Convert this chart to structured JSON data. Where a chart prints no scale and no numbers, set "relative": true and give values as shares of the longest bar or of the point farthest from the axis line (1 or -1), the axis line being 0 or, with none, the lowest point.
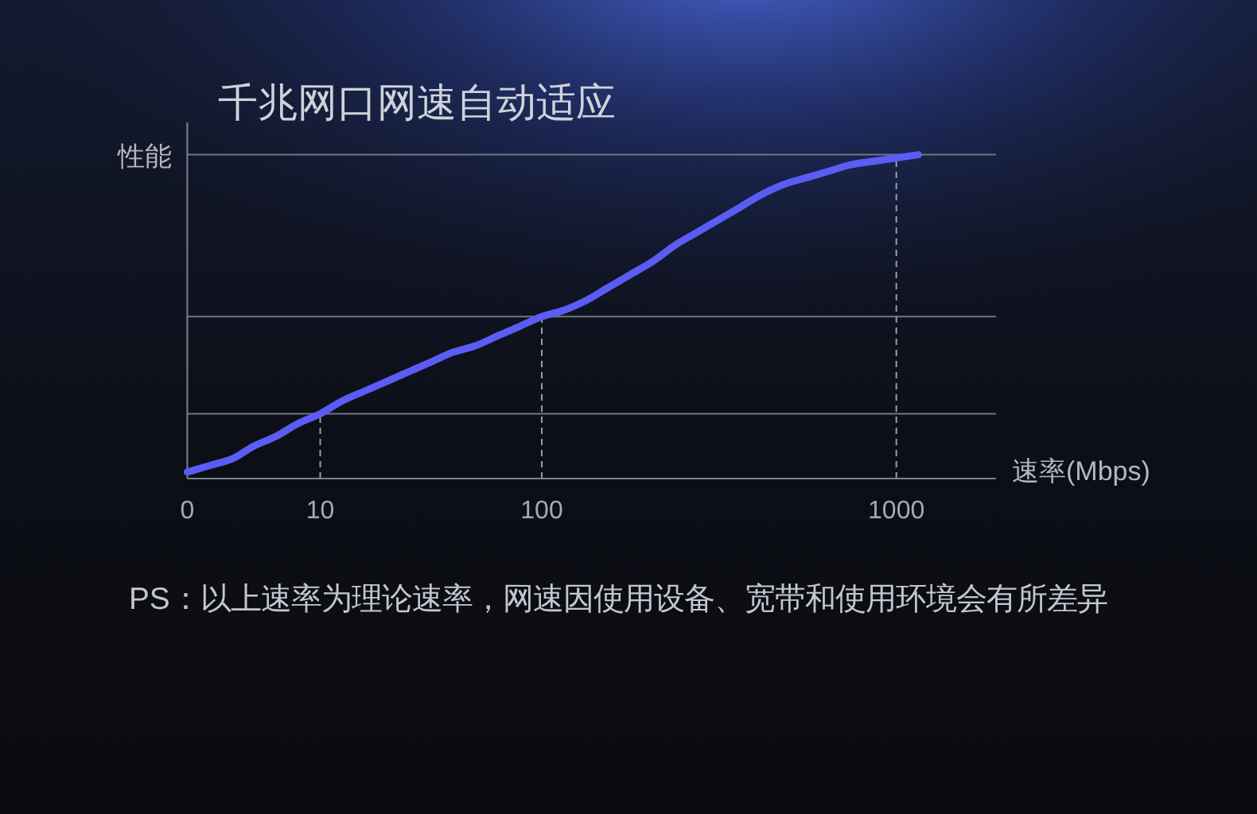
{
  "chart_data": {
    "type": "line",
    "title": "千兆网口网速自动适应",
    "xlabel": "速率(Mbps)",
    "ylabel": "性能",
    "relative": true,
    "categories": [
      "0",
      null,
      null,
      null,
      null,
      null,
      "10",
      null,
      null,
      null,
      null,
      null,
      null,
      null,
      null,
      null,
      "100",
      null,
      null,
      null,
      null,
      null,
      null,
      null,
      null,
      null,
      null,
      null,
      null,
      null,
      null,
      null,
      "1000",
      null
    ],
    "series": [
      {
        "color": "#5a5cf2",
        "values": [
          0.02,
          0.04,
          0.06,
          0.1,
          0.13,
          0.17,
          0.2,
          0.24,
          0.27,
          0.3,
          0.33,
          0.36,
          0.39,
          0.41,
          0.44,
          0.47,
          0.5,
          0.52,
          0.55,
          0.59,
          0.63,
          0.67,
          0.72,
          0.76,
          0.8,
          0.84,
          0.88,
          0.91,
          0.93,
          0.95,
          0.97,
          0.98,
          0.99,
          1
        ]
      }
    ],
    "ref_lines": [
      {
        "axis": "y",
        "value": 0.2,
        "color": "#73777f"
      },
      {
        "axis": "y",
        "value": 0.5,
        "color": "#73777f"
      },
      {
        "axis": "y",
        "value": 1,
        "color": "#73777f"
      },
      {
        "axis": "x",
        "value": "10",
        "color": "#9a9ea6",
        "line_style": "dashed"
      },
      {
        "axis": "x",
        "value": "100",
        "color": "#9a9ea6",
        "line_style": "dashed"
      },
      {
        "axis": "x",
        "value": "1000",
        "color": "#9a9ea6",
        "line_style": "dashed"
      }
    ],
    "annotations": [
      "PS：以上速率为理论速率，网速因使用设备、宽带和使用环境会有所差异"
    ]
  }
}
